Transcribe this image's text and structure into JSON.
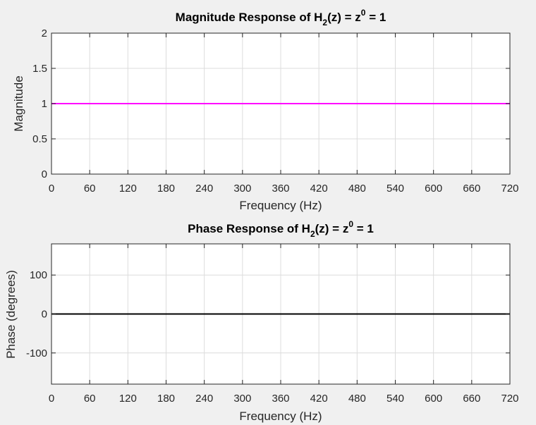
{
  "window": {
    "background": "#f0f0f0"
  },
  "chart_data": [
    {
      "type": "line",
      "title": {
        "main": "Magnitude Response of H",
        "sub": "2",
        "mid": "(z) = z",
        "sup": "0",
        "tail": " = 1"
      },
      "xlabel": "Frequency (Hz)",
      "ylabel": "Magnitude",
      "xlim": [
        0,
        720
      ],
      "ylim": [
        0,
        2
      ],
      "xticks": [
        0,
        60,
        120,
        180,
        240,
        300,
        360,
        420,
        480,
        540,
        600,
        660,
        720
      ],
      "xtick_labels": [
        "0",
        "60",
        "120",
        "180",
        "240",
        "300",
        "360",
        "420",
        "480",
        "540",
        "600",
        "660",
        "720"
      ],
      "yticks": [
        0,
        0.5,
        1,
        1.5,
        2
      ],
      "ytick_labels": [
        "0",
        "0.5",
        "1",
        "1.5",
        "2"
      ],
      "grid": true,
      "series": [
        {
          "color": "#ff00ff",
          "x": [
            0,
            720
          ],
          "y": [
            1,
            1
          ]
        }
      ]
    },
    {
      "type": "line",
      "title": {
        "main": "Phase Response of H",
        "sub": "2",
        "mid": "(z) = z",
        "sup": "0",
        "tail": " = 1"
      },
      "xlabel": "Frequency (Hz)",
      "ylabel": "Phase (degrees)",
      "xlim": [
        0,
        720
      ],
      "ylim": [
        -180,
        180
      ],
      "xticks": [
        0,
        60,
        120,
        180,
        240,
        300,
        360,
        420,
        480,
        540,
        600,
        660,
        720
      ],
      "xtick_labels": [
        "0",
        "60",
        "120",
        "180",
        "240",
        "300",
        "360",
        "420",
        "480",
        "540",
        "600",
        "660",
        "720"
      ],
      "yticks": [
        -100,
        0,
        100
      ],
      "ytick_labels": [
        "-100",
        "0",
        "100"
      ],
      "grid": true,
      "series": [
        {
          "color": "#000000",
          "x": [
            0,
            720
          ],
          "y": [
            0,
            0
          ]
        }
      ]
    }
  ]
}
